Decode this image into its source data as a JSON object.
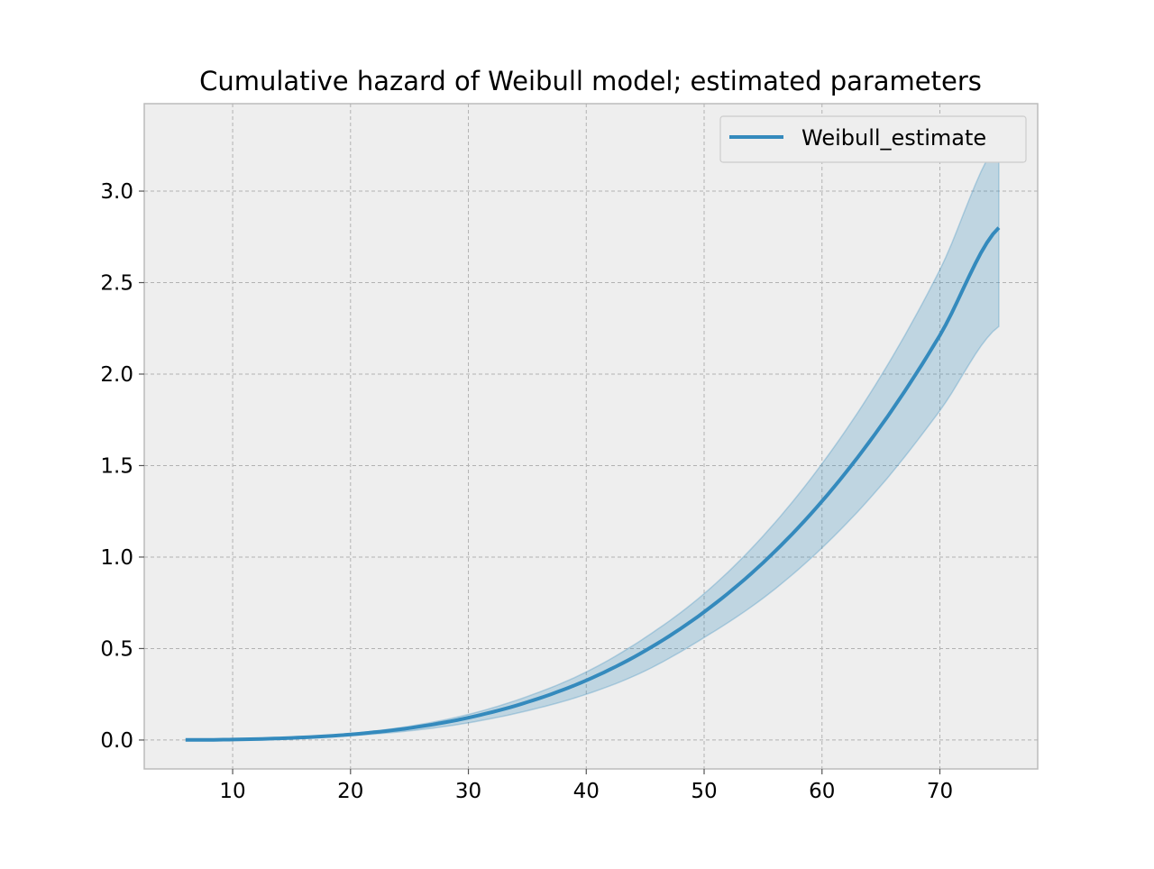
{
  "chart_data": {
    "type": "line",
    "title": "Cumulative hazard of Weibull model; estimated parameters",
    "xlabel": "",
    "ylabel": "",
    "xlim": [
      2.5,
      78.3
    ],
    "ylim": [
      -0.158,
      3.478
    ],
    "xticks": [
      10,
      20,
      30,
      40,
      50,
      60,
      70
    ],
    "xtick_labels": [
      "10",
      "20",
      "30",
      "40",
      "50",
      "60",
      "70"
    ],
    "yticks": [
      0.0,
      0.5,
      1.0,
      1.5,
      2.0,
      2.5,
      3.0
    ],
    "ytick_labels": [
      "0.0",
      "0.5",
      "1.0",
      "1.5",
      "2.0",
      "2.5",
      "3.0"
    ],
    "grid": true,
    "legend_position": "top-right",
    "series": [
      {
        "name": "Weibull_estimate",
        "color": "#348ABD",
        "x": [
          6,
          10,
          15,
          20,
          25,
          30,
          35,
          40,
          45,
          50,
          55,
          60,
          65,
          70,
          75
        ],
        "y": [
          0.0005,
          0.0028,
          0.0114,
          0.0305,
          0.0654,
          0.122,
          0.207,
          0.326,
          0.488,
          0.7,
          0.969,
          1.305,
          1.717,
          2.212,
          2.8
        ],
        "lower": [
          0.0004,
          0.0021,
          0.0087,
          0.0235,
          0.05,
          0.094,
          0.16,
          0.25,
          0.378,
          0.56,
          0.775,
          1.05,
          1.39,
          1.8,
          2.26
        ],
        "upper": [
          0.0006,
          0.0032,
          0.0131,
          0.0352,
          0.0755,
          0.14,
          0.238,
          0.372,
          0.56,
          0.8,
          1.115,
          1.51,
          1.99,
          2.57,
          3.27
        ]
      }
    ]
  }
}
